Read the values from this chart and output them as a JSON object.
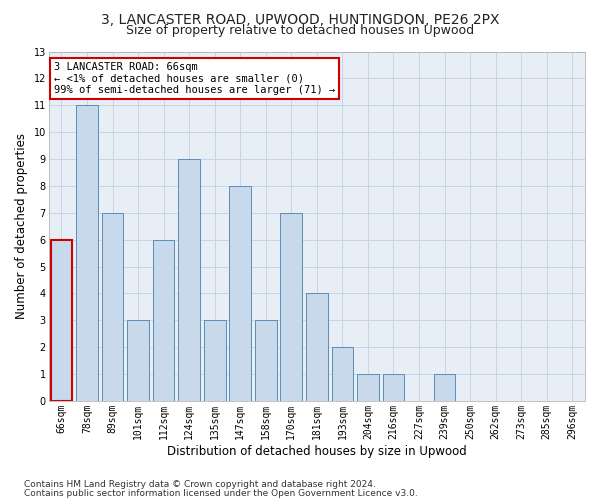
{
  "title1": "3, LANCASTER ROAD, UPWOOD, HUNTINGDON, PE26 2PX",
  "title2": "Size of property relative to detached houses in Upwood",
  "xlabel": "Distribution of detached houses by size in Upwood",
  "ylabel": "Number of detached properties",
  "categories": [
    "66sqm",
    "78sqm",
    "89sqm",
    "101sqm",
    "112sqm",
    "124sqm",
    "135sqm",
    "147sqm",
    "158sqm",
    "170sqm",
    "181sqm",
    "193sqm",
    "204sqm",
    "216sqm",
    "227sqm",
    "239sqm",
    "250sqm",
    "262sqm",
    "273sqm",
    "285sqm",
    "296sqm"
  ],
  "values": [
    6,
    11,
    7,
    3,
    6,
    9,
    3,
    8,
    3,
    7,
    4,
    2,
    1,
    1,
    0,
    1,
    0,
    0,
    0,
    0,
    0
  ],
  "bar_color": "#c9d9ec",
  "bar_edge_color": "#5b8db8",
  "highlight_bar_index": 0,
  "highlight_bar_edge_color": "#cc0000",
  "annotation_box_text": "3 LANCASTER ROAD: 66sqm\n← <1% of detached houses are smaller (0)\n99% of semi-detached houses are larger (71) →",
  "annotation_box_color": "#ffffff",
  "annotation_box_edge_color": "#cc0000",
  "ylim": [
    0,
    13
  ],
  "yticks": [
    0,
    1,
    2,
    3,
    4,
    5,
    6,
    7,
    8,
    9,
    10,
    11,
    12,
    13
  ],
  "grid_color": "#c8d4e8",
  "background_color": "#e8eef6",
  "footer1": "Contains HM Land Registry data © Crown copyright and database right 2024.",
  "footer2": "Contains public sector information licensed under the Open Government Licence v3.0.",
  "title1_fontsize": 10,
  "title2_fontsize": 9,
  "xlabel_fontsize": 8.5,
  "ylabel_fontsize": 8.5,
  "tick_fontsize": 7,
  "annotation_fontsize": 7.5,
  "footer_fontsize": 6.5
}
